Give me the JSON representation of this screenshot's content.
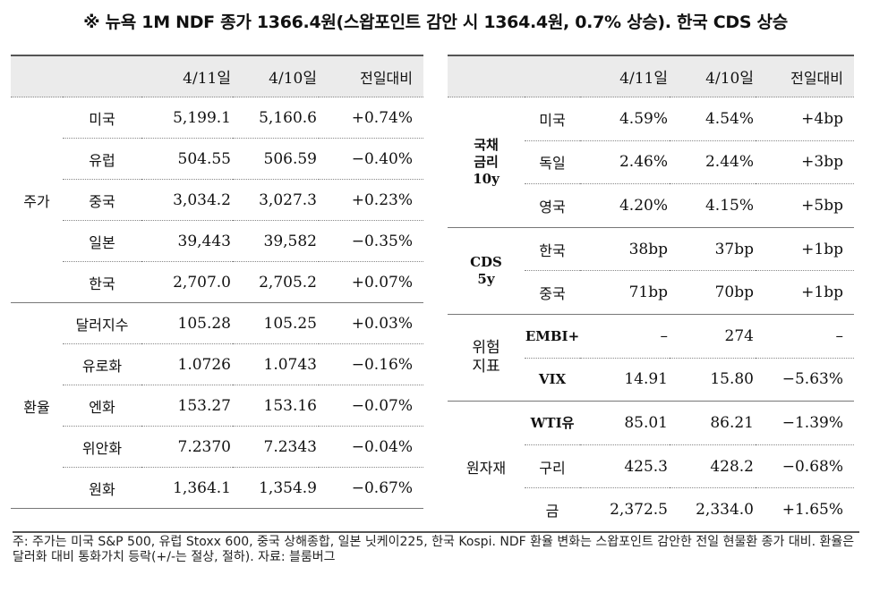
{
  "title": "※ 뉴욕 1M NDF 종가 1366.4원(스왑포인트 감안 시 1364.4원, 0.7% 상승). 한국 CDS 상승",
  "left": {
    "headers": [
      "4/11일",
      "4/10일",
      "전일대비"
    ],
    "groups": [
      {
        "name": "주가",
        "rows": [
          {
            "label": "미국",
            "d1": "5,199.1",
            "d2": "5,160.6",
            "chg": "+0.74%"
          },
          {
            "label": "유럽",
            "d1": "504.55",
            "d2": "506.59",
            "chg": "−0.40%"
          },
          {
            "label": "중국",
            "d1": "3,034.2",
            "d2": "3,027.3",
            "chg": "+0.23%"
          },
          {
            "label": "일본",
            "d1": "39,443",
            "d2": "39,582",
            "chg": "−0.35%"
          },
          {
            "label": "한국",
            "d1": "2,707.0",
            "d2": "2,705.2",
            "chg": "+0.07%"
          }
        ]
      },
      {
        "name": "환율",
        "rows": [
          {
            "label": "달러지수",
            "d1": "105.28",
            "d2": "105.25",
            "chg": "+0.03%"
          },
          {
            "label": "유로화",
            "d1": "1.0726",
            "d2": "1.0743",
            "chg": "−0.16%"
          },
          {
            "label": "엔화",
            "d1": "153.27",
            "d2": "153.16",
            "chg": "−0.07%"
          },
          {
            "label": "위안화",
            "d1": "7.2370",
            "d2": "7.2343",
            "chg": "−0.04%"
          },
          {
            "label": "원화",
            "d1": "1,364.1",
            "d2": "1,354.9",
            "chg": "−0.67%"
          }
        ]
      }
    ]
  },
  "right": {
    "headers": [
      "4/11일",
      "4/10일",
      "전일대비"
    ],
    "groups": [
      {
        "name": "국채\n금리\n10y",
        "rows": [
          {
            "label": "미국",
            "d1": "4.59%",
            "d2": "4.54%",
            "chg": "+4bp"
          },
          {
            "label": "독일",
            "d1": "2.46%",
            "d2": "2.44%",
            "chg": "+3bp"
          },
          {
            "label": "영국",
            "d1": "4.20%",
            "d2": "4.15%",
            "chg": "+5bp"
          }
        ]
      },
      {
        "name": "CDS\n5y",
        "rows": [
          {
            "label": "한국",
            "d1": "38bp",
            "d2": "37bp",
            "chg": "+1bp"
          },
          {
            "label": "중국",
            "d1": "71bp",
            "d2": "70bp",
            "chg": "+1bp"
          }
        ]
      },
      {
        "name": "위험\n지표",
        "rows": [
          {
            "label": "EMBI+",
            "d1": "–",
            "d2": "274",
            "chg": "–"
          },
          {
            "label": "VIX",
            "d1": "14.91",
            "d2": "15.80",
            "chg": "−5.63%"
          }
        ]
      },
      {
        "name": "원자재",
        "rows": [
          {
            "label": "WTI유",
            "d1": "85.01",
            "d2": "86.21",
            "chg": "−1.39%"
          },
          {
            "label": "구리",
            "d1": "425.3",
            "d2": "428.2",
            "chg": "−0.68%"
          },
          {
            "label": "금",
            "d1": "2,372.5",
            "d2": "2,334.0",
            "chg": "+1.65%"
          }
        ]
      }
    ]
  },
  "footnote": "주: 주가는 미국 S&P 500, 유럽 Stoxx 600, 중국 상해종합, 일본 닛케이225, 한국 Kospi. NDF 환율 변화는 스왑포인트 감안한 전일 현물환 종가 대비. 환율은 달러화 대비 통화가치 등락(+/-는 절상, 절하). 자료: 블룸버그"
}
